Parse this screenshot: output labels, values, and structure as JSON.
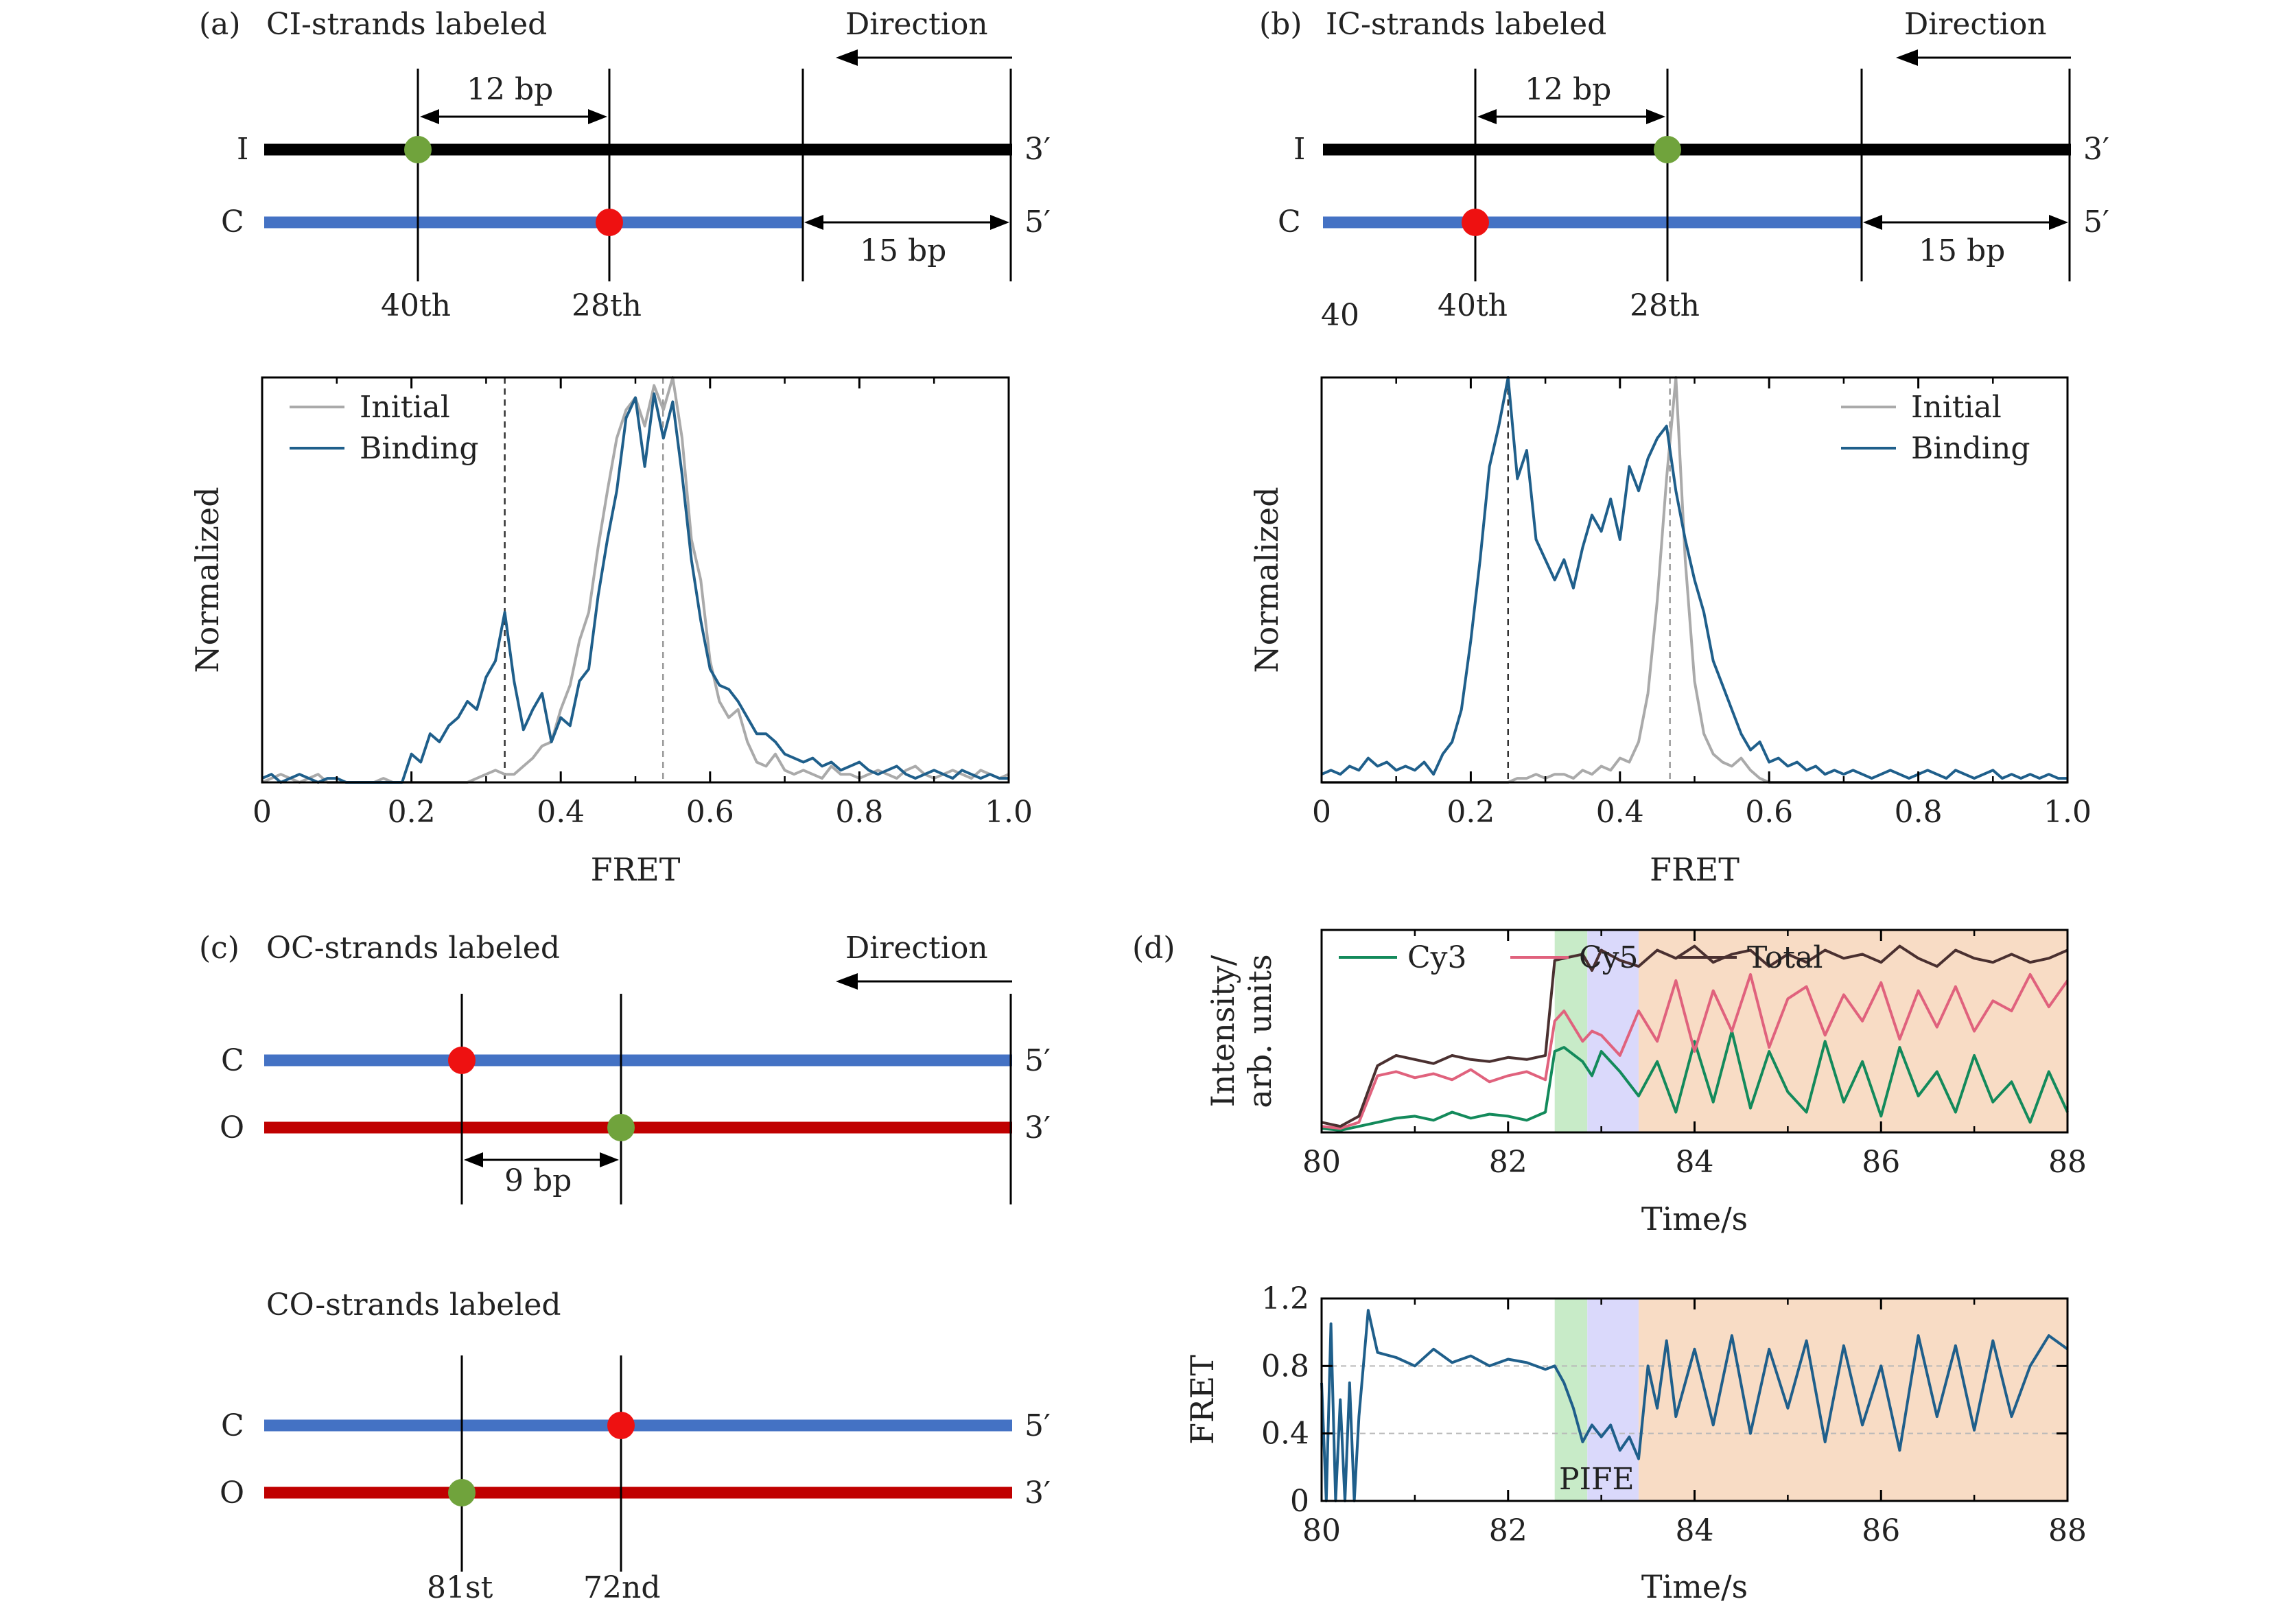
{
  "panel_a": {
    "label": "(a)",
    "title": "CI-strands labeled",
    "direction": "Direction",
    "strand_I": "I",
    "strand_C": "C",
    "end_I": "3′",
    "end_C": "5′",
    "spacing": "12 bp",
    "offset": "15 bp",
    "pos_left": "40th",
    "pos_right": "28th"
  },
  "panel_b": {
    "label": "(b)",
    "title": "IC-strands labeled",
    "direction": "Direction",
    "strand_I": "I",
    "strand_C": "C",
    "end_I": "3′",
    "end_C": "5′",
    "spacing": "12 bp",
    "offset": "15 bp",
    "stray": "40",
    "pos_left": "40th",
    "pos_right": "28th"
  },
  "panel_c": {
    "label": "(c)",
    "title_top": "OC-strands labeled",
    "title_bottom": "CO-strands labeled",
    "direction": "Direction",
    "strand_C": "C",
    "strand_O": "O",
    "end_C": "5′",
    "end_O": "3′",
    "spacing": "9 bp",
    "pos_left": "81st",
    "pos_right": "72nd"
  },
  "panel_d": {
    "label": "(d)",
    "pife": "PIFE"
  },
  "colors": {
    "strand_I": "#000000",
    "strand_C": "#4472c4",
    "strand_O": "#c00000",
    "dot_green": "#70a33c",
    "dot_red": "#ee1111",
    "initial": "#aaaaaa",
    "binding": "#1f5f8b",
    "cy3": "#138a5b",
    "cy5": "#e0627d",
    "total": "#4a3030",
    "shade_green": "#c8ebc8",
    "shade_purple": "#dad9fb",
    "shade_orange": "#f8dcc5"
  },
  "chart_data": [
    {
      "id": "a_hist",
      "type": "line",
      "title": "",
      "xlabel": "FRET",
      "ylabel": "Normalized",
      "xlim": [
        0,
        1.0
      ],
      "ylim": [
        0,
        1.0
      ],
      "xticks": [
        "0",
        "0.2",
        "0.4",
        "0.6",
        "0.8",
        "1.0"
      ],
      "dashed_lines": [
        0.325,
        0.537
      ],
      "legend": "top-left",
      "x": [
        0,
        0.0125,
        0.025,
        0.0375,
        0.05,
        0.0625,
        0.075,
        0.0875,
        0.1,
        0.1125,
        0.125,
        0.1375,
        0.15,
        0.1625,
        0.175,
        0.1875,
        0.2,
        0.2125,
        0.225,
        0.2375,
        0.25,
        0.2625,
        0.275,
        0.2875,
        0.3,
        0.3125,
        0.325,
        0.3375,
        0.35,
        0.3625,
        0.375,
        0.3875,
        0.4,
        0.4125,
        0.425,
        0.4375,
        0.45,
        0.4625,
        0.475,
        0.4875,
        0.5,
        0.5125,
        0.525,
        0.5375,
        0.55,
        0.5625,
        0.575,
        0.5875,
        0.6,
        0.6125,
        0.625,
        0.6375,
        0.65,
        0.6625,
        0.675,
        0.6875,
        0.7,
        0.7125,
        0.725,
        0.7375,
        0.75,
        0.7625,
        0.775,
        0.7875,
        0.8,
        0.8125,
        0.825,
        0.8375,
        0.85,
        0.8625,
        0.875,
        0.8875,
        0.9,
        0.9125,
        0.925,
        0.9375,
        0.95,
        0.9625,
        0.975,
        0.9875,
        1.0
      ],
      "series": [
        {
          "name": "Initial",
          "color": "#aaaaaa",
          "values": [
            0,
            0.01,
            0.02,
            0.01,
            0,
            0.01,
            0.02,
            0,
            0,
            0,
            0,
            0,
            0,
            0.01,
            0,
            0,
            0,
            0,
            0,
            0,
            0,
            0,
            0,
            0.01,
            0.02,
            0.03,
            0.02,
            0.02,
            0.04,
            0.06,
            0.09,
            0.1,
            0.18,
            0.24,
            0.35,
            0.42,
            0.58,
            0.72,
            0.85,
            0.92,
            0.95,
            0.88,
            0.98,
            0.92,
            1.0,
            0.85,
            0.6,
            0.5,
            0.3,
            0.2,
            0.16,
            0.18,
            0.1,
            0.05,
            0.04,
            0.07,
            0.03,
            0.02,
            0.03,
            0.02,
            0.01,
            0.04,
            0.02,
            0.02,
            0.01,
            0.02,
            0.03,
            0.02,
            0.01,
            0.03,
            0.04,
            0.02,
            0.01,
            0.02,
            0.03,
            0.02,
            0.01,
            0.03,
            0.02,
            0.01,
            0.02
          ]
        },
        {
          "name": "Binding",
          "color": "#1f5f8b",
          "values": [
            0.01,
            0.02,
            0,
            0.01,
            0.02,
            0.01,
            0,
            0.01,
            0.01,
            0,
            0,
            0,
            0,
            0,
            0,
            0,
            0.07,
            0.05,
            0.12,
            0.1,
            0.14,
            0.16,
            0.2,
            0.18,
            0.26,
            0.3,
            0.42,
            0.25,
            0.13,
            0.18,
            0.22,
            0.1,
            0.16,
            0.14,
            0.25,
            0.28,
            0.46,
            0.6,
            0.72,
            0.9,
            0.95,
            0.78,
            0.96,
            0.85,
            0.94,
            0.76,
            0.55,
            0.4,
            0.28,
            0.24,
            0.23,
            0.2,
            0.16,
            0.12,
            0.12,
            0.1,
            0.07,
            0.06,
            0.05,
            0.06,
            0.04,
            0.05,
            0.03,
            0.04,
            0.05,
            0.03,
            0.02,
            0.03,
            0.04,
            0.02,
            0.01,
            0.02,
            0.03,
            0.02,
            0.01,
            0.03,
            0.02,
            0.01,
            0.02,
            0.01,
            0.01
          ]
        }
      ]
    },
    {
      "id": "b_hist",
      "type": "line",
      "title": "",
      "xlabel": "FRET",
      "ylabel": "Normalized",
      "xlim": [
        0,
        1.0
      ],
      "ylim": [
        0,
        1.0
      ],
      "xticks": [
        "0",
        "0.2",
        "0.4",
        "0.6",
        "0.8",
        "1.0"
      ],
      "dashed_lines": [
        0.25,
        0.467
      ],
      "legend": "top-right",
      "x": [
        0,
        0.0125,
        0.025,
        0.0375,
        0.05,
        0.0625,
        0.075,
        0.0875,
        0.1,
        0.1125,
        0.125,
        0.1375,
        0.15,
        0.1625,
        0.175,
        0.1875,
        0.2,
        0.2125,
        0.225,
        0.2375,
        0.25,
        0.2625,
        0.275,
        0.2875,
        0.3,
        0.3125,
        0.325,
        0.3375,
        0.35,
        0.3625,
        0.375,
        0.3875,
        0.4,
        0.4125,
        0.425,
        0.4375,
        0.45,
        0.4625,
        0.475,
        0.4875,
        0.5,
        0.5125,
        0.525,
        0.5375,
        0.55,
        0.5625,
        0.575,
        0.5875,
        0.6,
        0.6125,
        0.625,
        0.6375,
        0.65,
        0.6625,
        0.675,
        0.6875,
        0.7,
        0.7125,
        0.725,
        0.7375,
        0.75,
        0.7625,
        0.775,
        0.7875,
        0.8,
        0.8125,
        0.825,
        0.8375,
        0.85,
        0.8625,
        0.875,
        0.8875,
        0.9,
        0.9125,
        0.925,
        0.9375,
        0.95,
        0.9625,
        0.975,
        0.9875,
        1.0
      ],
      "series": [
        {
          "name": "Initial",
          "color": "#aaaaaa",
          "values": [
            0,
            0,
            0,
            0,
            0,
            0,
            0,
            0,
            0,
            0,
            0,
            0,
            0,
            0,
            0,
            0,
            0,
            0,
            0,
            0,
            0,
            0.01,
            0.01,
            0.02,
            0.01,
            0.02,
            0.02,
            0.01,
            0.03,
            0.02,
            0.04,
            0.03,
            0.06,
            0.05,
            0.1,
            0.22,
            0.45,
            0.75,
            1.0,
            0.55,
            0.25,
            0.12,
            0.07,
            0.05,
            0.04,
            0.06,
            0.03,
            0.01,
            0,
            0,
            0,
            0,
            0,
            0,
            0,
            0,
            0,
            0,
            0,
            0,
            0,
            0,
            0,
            0,
            0,
            0,
            0,
            0,
            0,
            0,
            0,
            0,
            0,
            0,
            0,
            0,
            0,
            0,
            0,
            0,
            0
          ]
        },
        {
          "name": "Binding",
          "color": "#1f5f8b",
          "values": [
            0.02,
            0.03,
            0.02,
            0.04,
            0.03,
            0.06,
            0.04,
            0.05,
            0.03,
            0.04,
            0.03,
            0.05,
            0.02,
            0.07,
            0.1,
            0.18,
            0.35,
            0.55,
            0.78,
            0.88,
            1.0,
            0.75,
            0.82,
            0.6,
            0.55,
            0.5,
            0.55,
            0.48,
            0.58,
            0.66,
            0.62,
            0.7,
            0.6,
            0.78,
            0.72,
            0.8,
            0.85,
            0.88,
            0.72,
            0.6,
            0.5,
            0.42,
            0.3,
            0.24,
            0.18,
            0.12,
            0.08,
            0.1,
            0.05,
            0.06,
            0.04,
            0.05,
            0.03,
            0.04,
            0.02,
            0.03,
            0.02,
            0.03,
            0.02,
            0.01,
            0.02,
            0.03,
            0.02,
            0.01,
            0.02,
            0.03,
            0.02,
            0.01,
            0.03,
            0.02,
            0.01,
            0.02,
            0.03,
            0.01,
            0.02,
            0.01,
            0.02,
            0.01,
            0.02,
            0.01,
            0.01
          ]
        }
      ]
    },
    {
      "id": "d_intensity",
      "type": "line",
      "title": "",
      "xlabel": "Time/s",
      "ylabel": "Intensity/ arb. units",
      "xlim": [
        80,
        88
      ],
      "ylim": [
        0,
        1.0
      ],
      "xticks": [
        "80",
        "82",
        "84",
        "86",
        "88"
      ],
      "legend": "top",
      "shaded_regions": [
        {
          "from": 82.5,
          "to": 82.85,
          "color": "#c8ebc8"
        },
        {
          "from": 82.85,
          "to": 83.4,
          "color": "#dad9fb"
        },
        {
          "from": 83.4,
          "to": 88,
          "color": "#f8dcc5"
        }
      ],
      "x": [
        80,
        80.2,
        80.4,
        80.6,
        80.8,
        81,
        81.2,
        81.4,
        81.6,
        81.8,
        82,
        82.2,
        82.4,
        82.5,
        82.6,
        82.8,
        82.9,
        83.0,
        83.2,
        83.4,
        83.6,
        83.8,
        84,
        84.2,
        84.4,
        84.6,
        84.8,
        85,
        85.2,
        85.4,
        85.6,
        85.8,
        86,
        86.2,
        86.4,
        86.6,
        86.8,
        87,
        87.2,
        87.4,
        87.6,
        87.8,
        88
      ],
      "series": [
        {
          "name": "Cy3",
          "color": "#138a5b",
          "values": [
            0.02,
            0.01,
            0.03,
            0.05,
            0.07,
            0.08,
            0.06,
            0.1,
            0.07,
            0.09,
            0.08,
            0.06,
            0.1,
            0.4,
            0.42,
            0.35,
            0.28,
            0.4,
            0.3,
            0.18,
            0.35,
            0.1,
            0.45,
            0.15,
            0.5,
            0.12,
            0.4,
            0.2,
            0.1,
            0.45,
            0.15,
            0.35,
            0.08,
            0.42,
            0.18,
            0.3,
            0.1,
            0.38,
            0.15,
            0.25,
            0.05,
            0.3,
            0.1
          ]
        },
        {
          "name": "Cy5",
          "color": "#e0627d",
          "values": [
            0.03,
            0.02,
            0.05,
            0.28,
            0.3,
            0.27,
            0.29,
            0.26,
            0.31,
            0.25,
            0.28,
            0.3,
            0.26,
            0.55,
            0.6,
            0.45,
            0.5,
            0.48,
            0.38,
            0.6,
            0.45,
            0.75,
            0.4,
            0.7,
            0.5,
            0.78,
            0.42,
            0.66,
            0.72,
            0.48,
            0.68,
            0.55,
            0.74,
            0.46,
            0.7,
            0.52,
            0.72,
            0.5,
            0.65,
            0.6,
            0.78,
            0.62,
            0.75
          ]
        },
        {
          "name": "Total",
          "color": "#4a3030",
          "values": [
            0.05,
            0.03,
            0.08,
            0.33,
            0.38,
            0.36,
            0.34,
            0.38,
            0.36,
            0.35,
            0.37,
            0.36,
            0.38,
            0.85,
            0.86,
            0.88,
            0.8,
            0.9,
            0.85,
            0.82,
            0.9,
            0.86,
            0.92,
            0.84,
            0.88,
            0.9,
            0.82,
            0.88,
            0.84,
            0.9,
            0.86,
            0.88,
            0.84,
            0.92,
            0.86,
            0.82,
            0.9,
            0.86,
            0.84,
            0.88,
            0.84,
            0.86,
            0.9
          ]
        }
      ]
    },
    {
      "id": "d_fret",
      "type": "line",
      "title": "",
      "xlabel": "Time/s",
      "ylabel": "FRET",
      "xlim": [
        80,
        88
      ],
      "ylim": [
        0,
        1.2
      ],
      "xticks": [
        "80",
        "82",
        "84",
        "86",
        "88"
      ],
      "yticks": [
        "0",
        "0.4",
        "0.8",
        "1.2"
      ],
      "reference_lines": [
        0.4,
        0.8
      ],
      "shaded_regions": [
        {
          "from": 82.5,
          "to": 82.85,
          "color": "#c8ebc8"
        },
        {
          "from": 82.85,
          "to": 83.4,
          "color": "#dad9fb"
        },
        {
          "from": 83.4,
          "to": 88,
          "color": "#f8dcc5"
        }
      ],
      "x": [
        80,
        80.05,
        80.1,
        80.15,
        80.2,
        80.25,
        80.3,
        80.35,
        80.4,
        80.5,
        80.6,
        80.8,
        81,
        81.2,
        81.4,
        81.6,
        81.8,
        82,
        82.2,
        82.4,
        82.5,
        82.6,
        82.7,
        82.8,
        82.9,
        83,
        83.1,
        83.2,
        83.3,
        83.4,
        83.5,
        83.6,
        83.7,
        83.8,
        84,
        84.2,
        84.4,
        84.6,
        84.8,
        85,
        85.2,
        85.4,
        85.6,
        85.8,
        86,
        86.2,
        86.4,
        86.6,
        86.8,
        87,
        87.2,
        87.4,
        87.6,
        87.8,
        88
      ],
      "series": [
        {
          "name": "FRET",
          "color": "#1f5f8b",
          "values": [
            0.7,
            0.0,
            1.05,
            0.0,
            0.6,
            0.0,
            0.7,
            0.0,
            0.5,
            1.13,
            0.88,
            0.85,
            0.8,
            0.9,
            0.82,
            0.86,
            0.8,
            0.84,
            0.82,
            0.78,
            0.8,
            0.7,
            0.55,
            0.35,
            0.45,
            0.38,
            0.45,
            0.3,
            0.38,
            0.25,
            0.8,
            0.55,
            0.95,
            0.5,
            0.9,
            0.45,
            0.98,
            0.4,
            0.9,
            0.55,
            0.95,
            0.35,
            0.92,
            0.45,
            0.8,
            0.3,
            0.98,
            0.5,
            0.92,
            0.42,
            0.95,
            0.5,
            0.8,
            0.98,
            0.9
          ]
        }
      ]
    }
  ]
}
